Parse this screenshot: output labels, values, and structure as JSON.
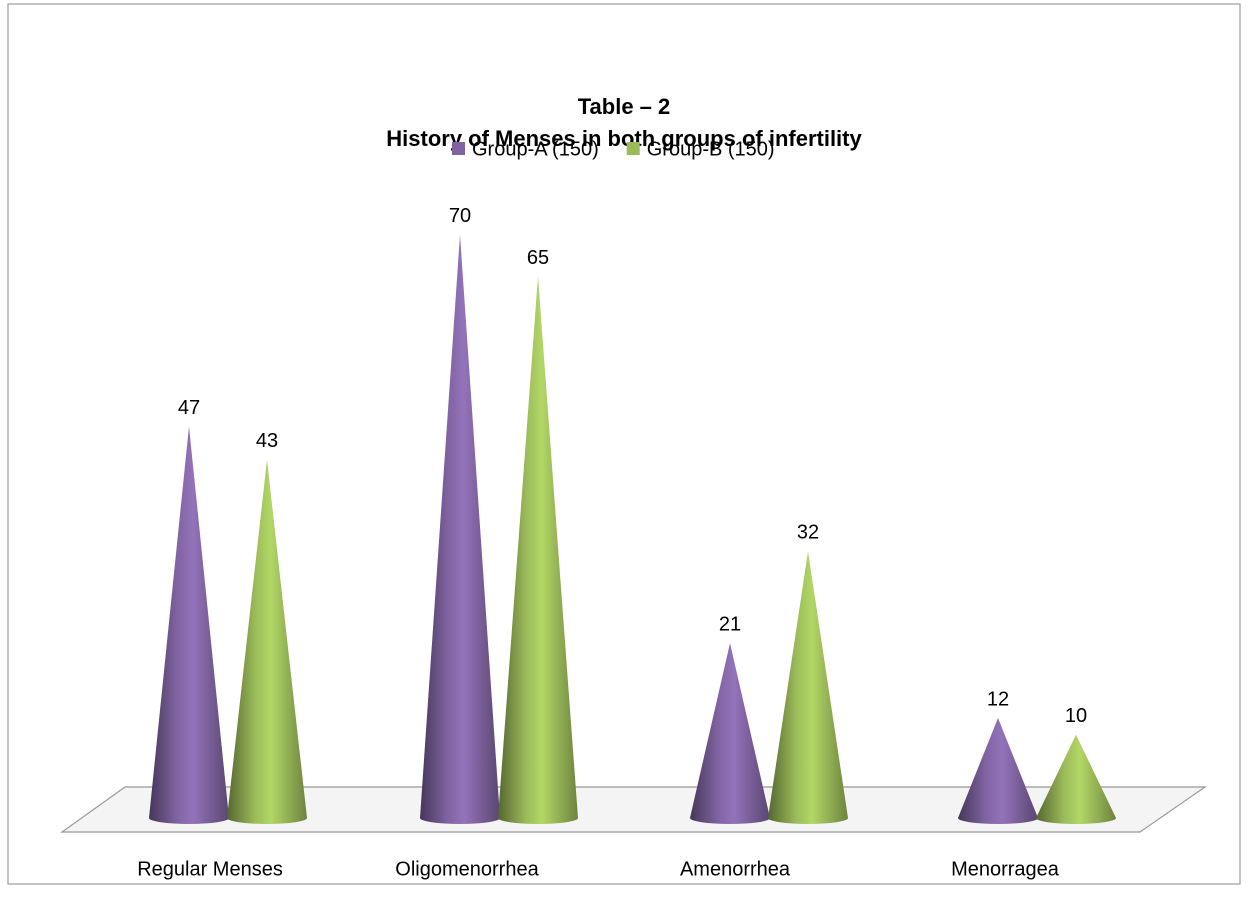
{
  "chart_data": {
    "type": "cone",
    "title": "Table – 2",
    "subtitle": "History of Menses in both groups of infertility",
    "categories": [
      "Regular Menses",
      "Oligomenorrhea",
      "Amenorrhea",
      "Menorragea"
    ],
    "series": [
      {
        "name": "Group-A (150)",
        "color": "#8064a2",
        "values": [
          47,
          70,
          21,
          12
        ]
      },
      {
        "name": "Group-B (150)",
        "color": "#9bbb59",
        "values": [
          43,
          65,
          32,
          10
        ]
      }
    ],
    "legend": "top"
  }
}
